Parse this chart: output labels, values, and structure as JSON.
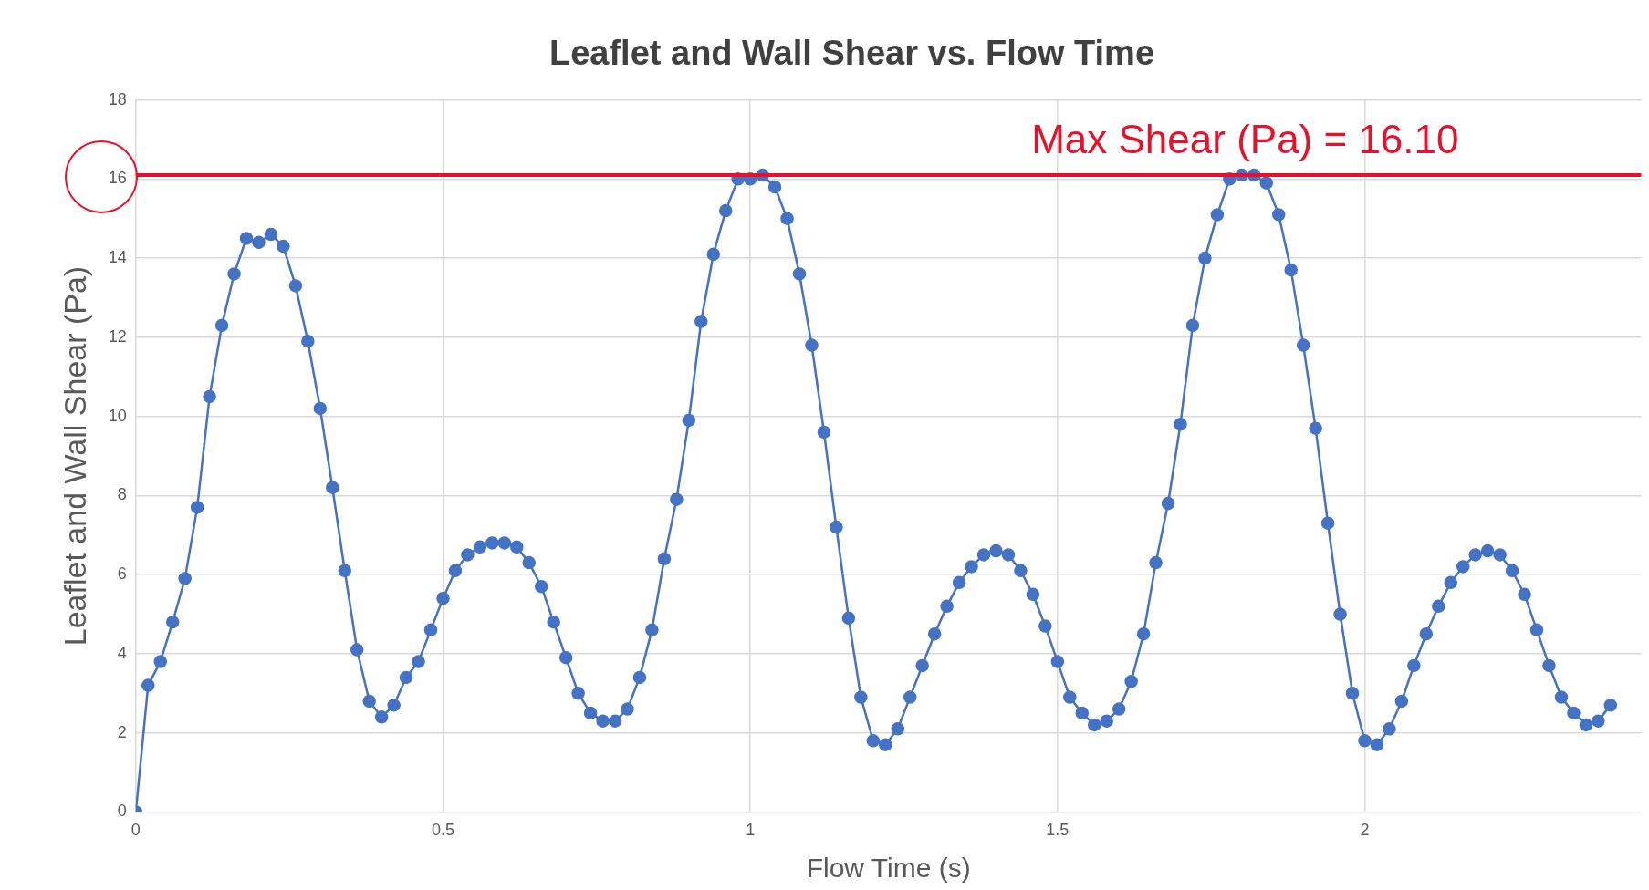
{
  "chart_data": {
    "type": "line",
    "title": "Leaflet and Wall Shear vs. Flow Time",
    "xlabel": "Flow Time (s)",
    "ylabel": "Leaflet and Wall Shear (Pa)",
    "x": [
      0,
      0.02,
      0.04,
      0.06,
      0.08,
      0.1,
      0.12,
      0.14,
      0.16,
      0.18,
      0.2,
      0.22,
      0.24,
      0.26,
      0.28,
      0.3,
      0.32,
      0.34,
      0.36,
      0.38,
      0.4,
      0.42,
      0.44,
      0.46,
      0.48,
      0.5,
      0.52,
      0.54,
      0.56,
      0.58,
      0.6,
      0.62,
      0.64,
      0.66,
      0.68,
      0.7,
      0.72,
      0.74,
      0.76,
      0.78,
      0.8,
      0.82,
      0.84,
      0.86,
      0.88,
      0.9,
      0.92,
      0.94,
      0.96,
      0.98,
      1,
      1.02,
      1.04,
      1.06,
      1.08,
      1.1,
      1.12,
      1.14,
      1.16,
      1.18,
      1.2,
      1.22,
      1.24,
      1.26,
      1.28,
      1.3,
      1.32,
      1.34,
      1.36,
      1.38,
      1.4,
      1.42,
      1.44,
      1.46,
      1.48,
      1.5,
      1.52,
      1.54,
      1.56,
      1.58,
      1.6,
      1.62,
      1.64,
      1.66,
      1.68,
      1.7,
      1.72,
      1.74,
      1.76,
      1.78,
      1.8,
      1.82,
      1.84,
      1.86,
      1.88,
      1.9,
      1.92,
      1.94,
      1.96,
      1.98,
      2,
      2.02,
      2.04,
      2.06,
      2.08,
      2.1,
      2.12,
      2.14,
      2.16,
      2.18,
      2.2,
      2.22,
      2.24,
      2.26,
      2.28,
      2.3,
      2.32,
      2.34,
      2.36,
      2.38,
      2.4
    ],
    "series": [
      {
        "color": "#4472c4",
        "values": [
          0,
          3.2,
          3.8,
          4.8,
          5.9,
          7.7,
          10.5,
          12.3,
          13.6,
          14.5,
          14.4,
          14.6,
          14.3,
          13.3,
          11.9,
          10.2,
          8.2,
          6.1,
          4.1,
          2.8,
          2.4,
          2.7,
          3.4,
          3.8,
          4.6,
          5.4,
          6.1,
          6.5,
          6.7,
          6.8,
          6.8,
          6.7,
          6.3,
          5.7,
          4.8,
          3.9,
          3.0,
          2.5,
          2.3,
          2.3,
          2.6,
          3.4,
          4.6,
          6.4,
          7.9,
          9.9,
          12.4,
          14.1,
          15.2,
          16.0,
          16.0,
          16.1,
          15.8,
          15.0,
          13.6,
          11.8,
          9.6,
          7.2,
          4.9,
          2.9,
          1.8,
          1.7,
          2.1,
          2.9,
          3.7,
          4.5,
          5.2,
          5.8,
          6.2,
          6.5,
          6.6,
          6.5,
          6.1,
          5.5,
          4.7,
          3.8,
          2.9,
          2.5,
          2.2,
          2.3,
          2.6,
          3.3,
          4.5,
          6.3,
          7.8,
          9.8,
          12.3,
          14.0,
          15.1,
          16.0,
          16.1,
          16.1,
          15.9,
          15.1,
          13.7,
          11.8,
          9.7,
          7.3,
          5.0,
          3.0,
          1.8,
          1.7,
          2.1,
          2.8,
          3.7,
          4.5,
          5.2,
          5.8,
          6.2,
          6.5,
          6.6,
          6.5,
          6.1,
          5.5,
          4.6,
          3.7,
          2.9,
          2.5,
          2.2,
          2.3,
          2.7
        ]
      }
    ],
    "xlim": [
      0,
      2.45
    ],
    "xticks": [
      0,
      0.5,
      1,
      1.5,
      2
    ],
    "ylim": [
      0,
      18
    ],
    "yticks": [
      0,
      2,
      4,
      6,
      8,
      10,
      12,
      14,
      16,
      18
    ],
    "ref_lines": [
      {
        "axis": "y",
        "value": 16.1,
        "label": "Max Shear (Pa) = 16.10",
        "color": "#e8102a"
      }
    ],
    "grid": true,
    "legend": false,
    "marker": "circle",
    "line_style": "solid"
  }
}
